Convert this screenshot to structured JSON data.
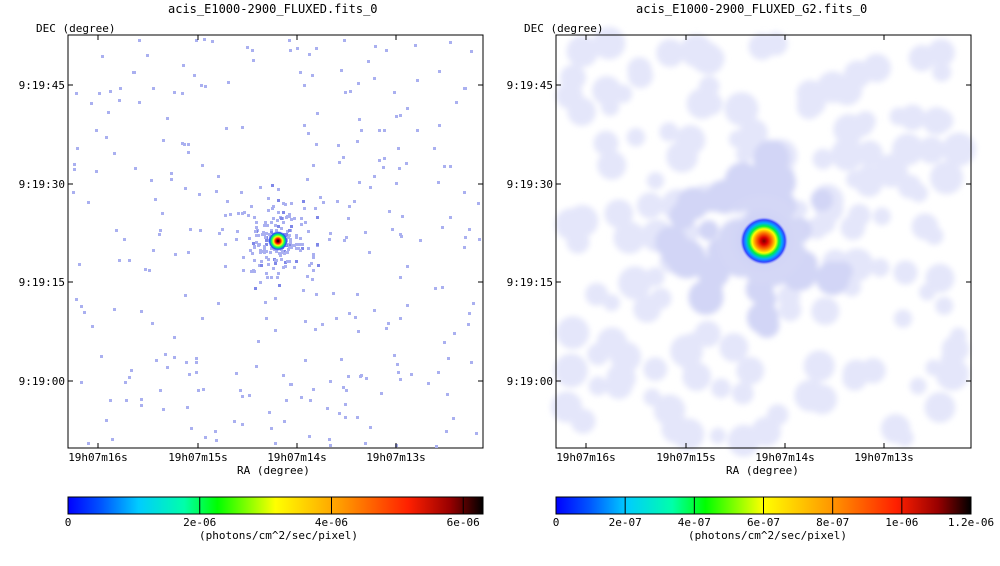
{
  "chart_data": [
    {
      "type": "heatmap",
      "title": "acis_E1000-2900_FLUXED.fits_0",
      "xlabel": "RA (degree)",
      "ylabel": "DEC (degree)",
      "x_ticks": [
        "19h07m16s",
        "19h07m15s",
        "19h07m14s",
        "19h07m13s"
      ],
      "y_ticks": [
        "9:19:45",
        "9:19:30",
        "9:19:15",
        "9:19:00"
      ],
      "colorbar": {
        "label": "(photons/cm^2/sec/pixel)",
        "range": [
          0,
          6.3e-06
        ],
        "ticks": [
          {
            "value": 0,
            "label": "0"
          },
          {
            "value": 2e-06,
            "label": "2e-06"
          },
          {
            "value": 4e-06,
            "label": "4e-06"
          },
          {
            "value": 6e-06,
            "label": "6e-06"
          }
        ]
      },
      "image": "unsmoothed sparse photon map: isolated single-pixel events, point source near center",
      "source_peak": 6.3e-06,
      "grid": false
    },
    {
      "type": "heatmap",
      "title": "acis_E1000-2900_FLUXED_G2.fits_0",
      "xlabel": "RA (degree)",
      "ylabel": "DEC (degree)",
      "x_ticks": [
        "19h07m16s",
        "19h07m15s",
        "19h07m14s",
        "19h07m13s"
      ],
      "y_ticks": [
        "9:19:45",
        "9:19:30",
        "9:19:15",
        "9:19:00"
      ],
      "colorbar": {
        "label": "(photons/cm^2/sec/pixel)",
        "range": [
          0,
          1.2e-06
        ],
        "ticks": [
          {
            "value": 0,
            "label": "0"
          },
          {
            "value": 2e-07,
            "label": "2e-07"
          },
          {
            "value": 4e-07,
            "label": "4e-07"
          },
          {
            "value": 6e-07,
            "label": "6e-07"
          },
          {
            "value": 8e-07,
            "label": "8e-07"
          },
          {
            "value": 1e-06,
            "label": "1e-06"
          },
          {
            "value": 1.2e-06,
            "label": "1.2e-06"
          }
        ]
      },
      "image": "Gaussian-smoothed photon map: diffuse pale blobs, bright point source near center",
      "source_peak": 1.2e-06,
      "grid": false
    }
  ],
  "colormap": [
    "#0000ff",
    "#00ffff",
    "#00ff00",
    "#ffff00",
    "#ff8000",
    "#ff0000",
    "#000000"
  ]
}
